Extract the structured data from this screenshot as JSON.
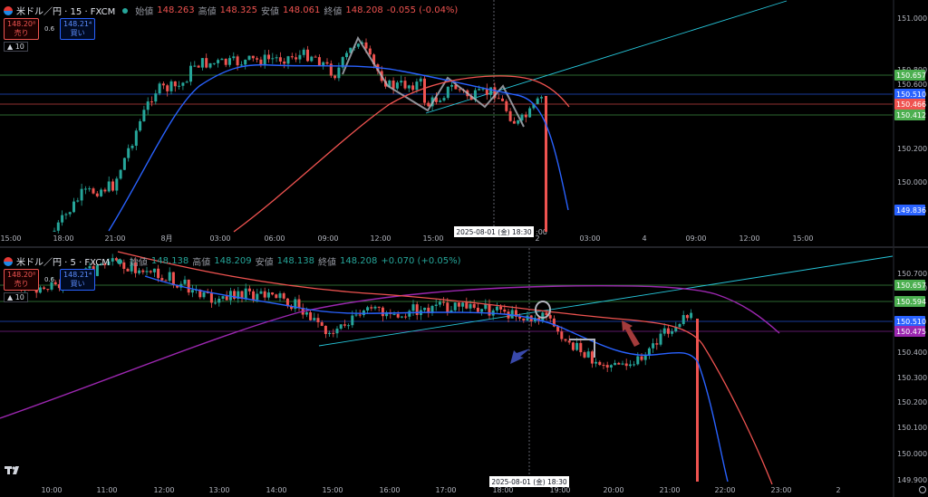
{
  "colors": {
    "up": "#26a69a",
    "down": "#ef5350",
    "ma_blue": "#2962ff",
    "ma_red": "#ef5350",
    "ma_purple": "#9c27b0",
    "trend": "#26c6da"
  },
  "panes": [
    {
      "header": {
        "symbol": "米ドル／円 · 15 · FXCM",
        "open_label": "始値",
        "open": "148.263",
        "high_label": "高値",
        "high": "148.325",
        "low_label": "安値",
        "low": "148.061",
        "close_label": "終値",
        "close": "148.208",
        "change": "-0.055 (-0.04%)"
      },
      "trade": {
        "sell_price": "148.20⁸",
        "sell_label": "売り",
        "spread": "0.6",
        "buy_price": "148.21⁴",
        "buy_label": "買い",
        "qty": "10"
      },
      "y_ticks": [
        "151.000",
        "150.800",
        "150.600",
        "150.200",
        "150.000"
      ],
      "price_labels": [
        {
          "text": "150.657",
          "color": "#4caf50"
        },
        {
          "text": "150.510",
          "color": "#2962ff"
        },
        {
          "text": "150.466",
          "color": "#ef5350"
        },
        {
          "text": "150.412",
          "color": "#4caf50"
        },
        {
          "text": "149.836",
          "color": "#2962ff"
        }
      ],
      "x_ticks": [
        "15:00",
        "18:00",
        "21:00",
        "8月",
        "03:00",
        "06:00",
        "09:00",
        "12:00",
        "15:00",
        "2",
        "03:00",
        "4",
        "09:00",
        "12:00",
        "15:00"
      ],
      "crosshair_label": "2025-08-01 (金)   18:30",
      "crosshair_suffix": ":00"
    },
    {
      "header": {
        "symbol": "米ドル／円 · 5 · FXCM",
        "open_label": "始値",
        "open": "148.138",
        "high_label": "高値",
        "high": "148.209",
        "low_label": "安値",
        "low": "148.138",
        "close_label": "終値",
        "close": "148.208",
        "change": "+0.070 (+0.05%)"
      },
      "trade": {
        "sell_price": "148.20⁸",
        "sell_label": "売り",
        "spread": "0.6",
        "buy_price": "148.21⁴",
        "buy_label": "買い",
        "qty": "10"
      },
      "y_ticks": [
        "150.700",
        "150.600",
        "150.400",
        "150.300",
        "150.200",
        "150.100",
        "150.000",
        "149.900"
      ],
      "price_labels": [
        {
          "text": "150.657",
          "color": "#4caf50"
        },
        {
          "text": "150.594",
          "color": "#4caf50"
        },
        {
          "text": "150.510",
          "color": "#2962ff"
        },
        {
          "text": "150.475",
          "color": "#9c27b0"
        }
      ],
      "x_ticks": [
        "10:00",
        "11:00",
        "12:00",
        "13:00",
        "14:00",
        "15:00",
        "16:00",
        "17:00",
        "18:00",
        "19:00",
        "20:00",
        "21:00",
        "22:00",
        "23:00",
        "2"
      ],
      "crosshair_label": "2025-08-01 (金)   18:30"
    }
  ]
}
